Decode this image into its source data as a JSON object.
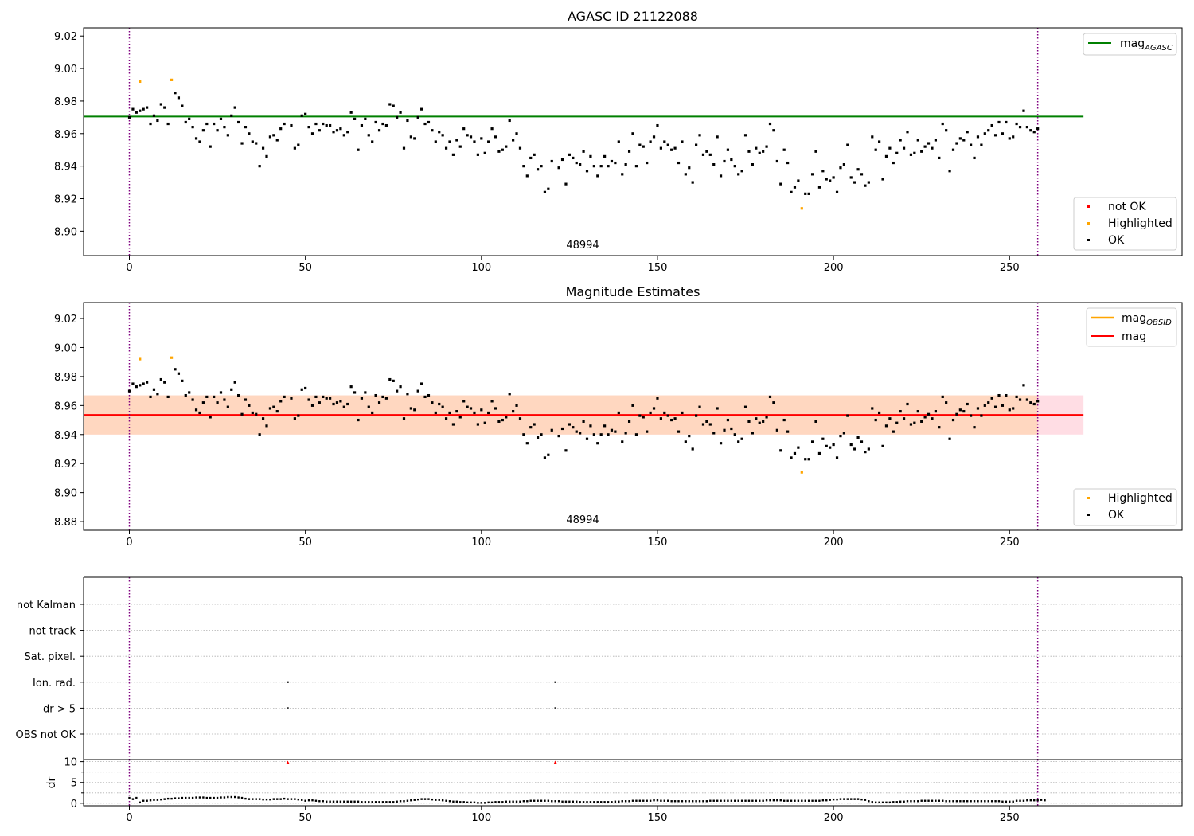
{
  "colors": {
    "ok": "#000000",
    "highlighted": "#ffa500",
    "not_ok": "#ff0000",
    "mag_agasc_line": "#008000",
    "mag_obsid_line": "#ffa500",
    "mag_line": "#ff0000",
    "band_outer": "#ffdde4",
    "band_inner": "#ffd7c0",
    "vline": "#800080",
    "grid": "#b0b0b0"
  },
  "chart_data": [
    {
      "type": "scatter",
      "title": "AGASC ID 21122088",
      "xlabel": "",
      "ylabel": "",
      "xlim": [
        -13,
        299
      ],
      "ylim": [
        8.885,
        9.025
      ],
      "xticks": [
        0,
        50,
        100,
        150,
        200,
        250
      ],
      "yticks": [
        8.9,
        8.92,
        8.94,
        8.96,
        8.98,
        9.0,
        9.02
      ],
      "ytick_labels": [
        "8.90",
        "8.92",
        "8.94",
        "8.96",
        "8.98",
        "9.00",
        "9.02"
      ],
      "annotation": {
        "text": "48994",
        "x": 129,
        "y": 8.889
      },
      "vlines": [
        0,
        258
      ],
      "hlines": [
        {
          "name": "mag",
          "sub": "AGASC",
          "y": 8.9705,
          "x": [
            -13,
            271
          ]
        }
      ],
      "legend_lines": [
        {
          "label": "mag",
          "sub": "AGASC",
          "color_key": "mag_agasc_line",
          "position": "top-right"
        }
      ],
      "legend_points": [
        {
          "label": "not OK",
          "color_key": "not_ok"
        },
        {
          "label": "Highlighted",
          "color_key": "highlighted"
        },
        {
          "label": "OK",
          "color_key": "ok"
        }
      ],
      "legend_points_position": "bottom-right"
    },
    {
      "type": "scatter",
      "title": "Magnitude Estimates",
      "xlabel": "",
      "ylabel": "",
      "xlim": [
        -13,
        299
      ],
      "ylim": [
        8.874,
        9.031
      ],
      "xticks": [
        0,
        50,
        100,
        150,
        200,
        250
      ],
      "yticks": [
        8.88,
        8.9,
        8.92,
        8.94,
        8.96,
        8.98,
        9.0,
        9.02
      ],
      "ytick_labels": [
        "8.88",
        "8.90",
        "8.92",
        "8.94",
        "8.96",
        "8.98",
        "9.00",
        "9.02"
      ],
      "annotation": {
        "text": "48994",
        "x": 129,
        "y": 8.877
      },
      "vlines": [
        0,
        258
      ],
      "bands": [
        {
          "y0": 8.94,
          "y1": 8.967,
          "x": [
            -13,
            271
          ],
          "color_key": "band_outer"
        },
        {
          "y0": 8.94,
          "y1": 8.967,
          "x": [
            -13,
            258
          ],
          "color_key": "band_inner"
        }
      ],
      "hlines": [
        {
          "name": "mag",
          "y": 8.9535,
          "x": [
            -13,
            271
          ]
        }
      ],
      "legend_lines": [
        {
          "label": "mag",
          "sub": "OBSID",
          "color_key": "mag_obsid_line"
        },
        {
          "label": "mag",
          "color_key": "mag_line"
        }
      ],
      "legend_lines_position": "top-right",
      "legend_points": [
        {
          "label": "Highlighted",
          "color_key": "highlighted"
        },
        {
          "label": "OK",
          "color_key": "ok"
        }
      ],
      "legend_points_position": "bottom-right"
    },
    {
      "type": "scatter",
      "title": "",
      "categories": [
        "not Kalman",
        "not track",
        "Sat. pixel.",
        "Ion. rad.",
        "dr > 5",
        "OBS not OK"
      ],
      "flag_points": [
        {
          "category": "Ion. rad.",
          "x": [
            45,
            121
          ]
        },
        {
          "category": "dr > 5",
          "x": [
            45,
            121
          ]
        }
      ],
      "grid": true,
      "vlines": [
        0,
        258
      ]
    },
    {
      "type": "scatter",
      "title": "",
      "ylabel": "dr",
      "xlim": [
        -13,
        299
      ],
      "ylim": [
        -0.6,
        10.5
      ],
      "xticks": [
        0,
        50,
        100,
        150,
        200,
        250
      ],
      "yticks": [
        0,
        5,
        10
      ],
      "grid": true,
      "vlines": [
        0,
        258
      ],
      "outliers": [
        {
          "x": 45,
          "y": 9.8
        },
        {
          "x": 121,
          "y": 9.8
        }
      ]
    }
  ],
  "series": {
    "ok_points": [
      [
        0,
        8.97
      ],
      [
        1,
        8.975
      ],
      [
        2,
        8.973
      ],
      [
        3,
        8.974
      ],
      [
        4,
        8.975
      ],
      [
        5,
        8.976
      ],
      [
        6,
        8.966
      ],
      [
        7,
        8.971
      ],
      [
        8,
        8.968
      ],
      [
        9,
        8.978
      ],
      [
        10,
        8.976
      ],
      [
        11,
        8.966
      ],
      [
        13,
        8.985
      ],
      [
        14,
        8.982
      ],
      [
        15,
        8.977
      ],
      [
        16,
        8.967
      ],
      [
        17,
        8.969
      ],
      [
        18,
        8.964
      ],
      [
        19,
        8.957
      ],
      [
        20,
        8.955
      ],
      [
        21,
        8.962
      ],
      [
        22,
        8.966
      ],
      [
        23,
        8.952
      ],
      [
        24,
        8.966
      ],
      [
        25,
        8.962
      ],
      [
        26,
        8.969
      ],
      [
        27,
        8.964
      ],
      [
        28,
        8.959
      ],
      [
        29,
        8.971
      ],
      [
        30,
        8.976
      ],
      [
        31,
        8.967
      ],
      [
        32,
        8.954
      ],
      [
        33,
        8.964
      ],
      [
        34,
        8.96
      ],
      [
        35,
        8.955
      ],
      [
        36,
        8.954
      ],
      [
        37,
        8.94
      ],
      [
        38,
        8.951
      ],
      [
        39,
        8.946
      ],
      [
        40,
        8.958
      ],
      [
        41,
        8.959
      ],
      [
        42,
        8.956
      ],
      [
        43,
        8.963
      ],
      [
        44,
        8.966
      ],
      [
        46,
        8.965
      ],
      [
        47,
        8.951
      ],
      [
        48,
        8.953
      ],
      [
        49,
        8.971
      ],
      [
        50,
        8.972
      ],
      [
        51,
        8.964
      ],
      [
        52,
        8.96
      ],
      [
        53,
        8.966
      ],
      [
        54,
        8.962
      ],
      [
        55,
        8.966
      ],
      [
        56,
        8.965
      ],
      [
        57,
        8.965
      ],
      [
        58,
        8.961
      ],
      [
        59,
        8.962
      ],
      [
        60,
        8.963
      ],
      [
        61,
        8.959
      ],
      [
        62,
        8.961
      ],
      [
        63,
        8.973
      ],
      [
        64,
        8.969
      ],
      [
        65,
        8.95
      ],
      [
        66,
        8.965
      ],
      [
        67,
        8.969
      ],
      [
        68,
        8.959
      ],
      [
        69,
        8.955
      ],
      [
        70,
        8.967
      ],
      [
        71,
        8.962
      ],
      [
        72,
        8.966
      ],
      [
        73,
        8.965
      ],
      [
        74,
        8.978
      ],
      [
        75,
        8.977
      ],
      [
        76,
        8.97
      ],
      [
        77,
        8.973
      ],
      [
        78,
        8.951
      ],
      [
        79,
        8.968
      ],
      [
        80,
        8.958
      ],
      [
        81,
        8.957
      ],
      [
        82,
        8.97
      ],
      [
        83,
        8.975
      ],
      [
        84,
        8.966
      ],
      [
        85,
        8.967
      ],
      [
        86,
        8.962
      ],
      [
        87,
        8.955
      ],
      [
        88,
        8.961
      ],
      [
        89,
        8.959
      ],
      [
        90,
        8.951
      ],
      [
        91,
        8.955
      ],
      [
        92,
        8.947
      ],
      [
        93,
        8.956
      ],
      [
        94,
        8.952
      ],
      [
        95,
        8.963
      ],
      [
        96,
        8.959
      ],
      [
        97,
        8.958
      ],
      [
        98,
        8.955
      ],
      [
        99,
        8.947
      ],
      [
        100,
        8.957
      ],
      [
        101,
        8.948
      ],
      [
        102,
        8.955
      ],
      [
        103,
        8.963
      ],
      [
        104,
        8.958
      ],
      [
        105,
        8.949
      ],
      [
        106,
        8.95
      ],
      [
        107,
        8.952
      ],
      [
        108,
        8.968
      ],
      [
        109,
        8.956
      ],
      [
        110,
        8.96
      ],
      [
        111,
        8.951
      ],
      [
        112,
        8.94
      ],
      [
        113,
        8.934
      ],
      [
        114,
        8.945
      ],
      [
        115,
        8.947
      ],
      [
        116,
        8.938
      ],
      [
        117,
        8.94
      ],
      [
        118,
        8.924
      ],
      [
        119,
        8.926
      ],
      [
        120,
        8.943
      ],
      [
        122,
        8.939
      ],
      [
        123,
        8.944
      ],
      [
        124,
        8.929
      ],
      [
        125,
        8.947
      ],
      [
        126,
        8.945
      ],
      [
        127,
        8.942
      ],
      [
        128,
        8.941
      ],
      [
        129,
        8.949
      ],
      [
        130,
        8.937
      ],
      [
        131,
        8.946
      ],
      [
        132,
        8.94
      ],
      [
        133,
        8.934
      ],
      [
        134,
        8.94
      ],
      [
        135,
        8.946
      ],
      [
        136,
        8.94
      ],
      [
        137,
        8.943
      ],
      [
        138,
        8.942
      ],
      [
        139,
        8.955
      ],
      [
        140,
        8.935
      ],
      [
        141,
        8.941
      ],
      [
        142,
        8.949
      ],
      [
        143,
        8.96
      ],
      [
        144,
        8.94
      ],
      [
        145,
        8.953
      ],
      [
        146,
        8.952
      ],
      [
        147,
        8.942
      ],
      [
        148,
        8.955
      ],
      [
        149,
        8.958
      ],
      [
        150,
        8.965
      ],
      [
        151,
        8.951
      ],
      [
        152,
        8.955
      ],
      [
        153,
        8.953
      ],
      [
        154,
        8.95
      ],
      [
        155,
        8.951
      ],
      [
        156,
        8.942
      ],
      [
        157,
        8.955
      ],
      [
        158,
        8.935
      ],
      [
        159,
        8.939
      ],
      [
        160,
        8.93
      ],
      [
        161,
        8.953
      ],
      [
        162,
        8.959
      ],
      [
        163,
        8.947
      ],
      [
        164,
        8.949
      ],
      [
        165,
        8.947
      ],
      [
        166,
        8.941
      ],
      [
        167,
        8.958
      ],
      [
        168,
        8.934
      ],
      [
        169,
        8.943
      ],
      [
        170,
        8.95
      ],
      [
        171,
        8.944
      ],
      [
        172,
        8.94
      ],
      [
        173,
        8.935
      ],
      [
        174,
        8.937
      ],
      [
        175,
        8.959
      ],
      [
        176,
        8.949
      ],
      [
        177,
        8.941
      ],
      [
        178,
        8.951
      ],
      [
        179,
        8.948
      ],
      [
        180,
        8.949
      ],
      [
        181,
        8.952
      ],
      [
        182,
        8.966
      ],
      [
        183,
        8.962
      ],
      [
        184,
        8.943
      ],
      [
        185,
        8.929
      ],
      [
        186,
        8.95
      ],
      [
        187,
        8.942
      ],
      [
        188,
        8.924
      ],
      [
        189,
        8.927
      ],
      [
        190,
        8.931
      ],
      [
        192,
        8.923
      ],
      [
        193,
        8.923
      ],
      [
        194,
        8.935
      ],
      [
        195,
        8.949
      ],
      [
        196,
        8.927
      ],
      [
        197,
        8.937
      ],
      [
        198,
        8.932
      ],
      [
        199,
        8.931
      ],
      [
        200,
        8.933
      ],
      [
        201,
        8.924
      ],
      [
        202,
        8.939
      ],
      [
        203,
        8.941
      ],
      [
        204,
        8.953
      ],
      [
        205,
        8.933
      ],
      [
        206,
        8.93
      ],
      [
        207,
        8.938
      ],
      [
        208,
        8.935
      ],
      [
        209,
        8.928
      ],
      [
        210,
        8.93
      ],
      [
        211,
        8.958
      ],
      [
        212,
        8.95
      ],
      [
        213,
        8.955
      ],
      [
        214,
        8.932
      ],
      [
        215,
        8.946
      ],
      [
        216,
        8.951
      ],
      [
        217,
        8.942
      ],
      [
        218,
        8.948
      ],
      [
        219,
        8.956
      ],
      [
        220,
        8.951
      ],
      [
        221,
        8.961
      ],
      [
        222,
        8.947
      ],
      [
        223,
        8.948
      ],
      [
        224,
        8.956
      ],
      [
        225,
        8.949
      ],
      [
        226,
        8.952
      ],
      [
        227,
        8.954
      ],
      [
        228,
        8.951
      ],
      [
        229,
        8.956
      ],
      [
        230,
        8.945
      ],
      [
        231,
        8.966
      ],
      [
        232,
        8.962
      ],
      [
        233,
        8.937
      ],
      [
        234,
        8.95
      ],
      [
        235,
        8.954
      ],
      [
        236,
        8.957
      ],
      [
        237,
        8.956
      ],
      [
        238,
        8.961
      ],
      [
        239,
        8.953
      ],
      [
        240,
        8.945
      ],
      [
        241,
        8.958
      ],
      [
        242,
        8.953
      ],
      [
        243,
        8.96
      ],
      [
        244,
        8.962
      ],
      [
        245,
        8.965
      ],
      [
        246,
        8.959
      ],
      [
        247,
        8.967
      ],
      [
        248,
        8.96
      ],
      [
        249,
        8.967
      ],
      [
        250,
        8.957
      ],
      [
        251,
        8.958
      ],
      [
        252,
        8.966
      ],
      [
        253,
        8.964
      ],
      [
        254,
        8.974
      ],
      [
        255,
        8.964
      ],
      [
        256,
        8.962
      ],
      [
        257,
        8.961
      ],
      [
        258,
        8.963
      ]
    ],
    "highlighted_points": [
      [
        3,
        8.992
      ],
      [
        12,
        8.993
      ],
      [
        191,
        8.914
      ]
    ],
    "dr_values": [
      1.3,
      1.0,
      1.3,
      0.2,
      0.6,
      0.6,
      0.7,
      0.8,
      0.8,
      0.9,
      1.0,
      1.1,
      1.1,
      1.2,
      1.2,
      1.3,
      1.3,
      1.3,
      1.3,
      1.4,
      1.4,
      1.4,
      1.3,
      1.3,
      1.3,
      1.3,
      1.4,
      1.4,
      1.5,
      1.5,
      1.5,
      1.4,
      1.3,
      1.1,
      1.0,
      1.0,
      1.0,
      1.0,
      0.9,
      0.9,
      0.9,
      1.0,
      1.0,
      1.0,
      1.1,
      1.0,
      1.0,
      1.0,
      0.9,
      0.8,
      0.6,
      0.7,
      0.7,
      0.6,
      0.5,
      0.5,
      0.4,
      0.4,
      0.4,
      0.4,
      0.4,
      0.4,
      0.4,
      0.4,
      0.4,
      0.4,
      0.3,
      0.3,
      0.3,
      0.3,
      0.3,
      0.3,
      0.3,
      0.3,
      0.3,
      0.3,
      0.4,
      0.5,
      0.5,
      0.6,
      0.7,
      0.8,
      0.9,
      1.0,
      1.0,
      1.0,
      0.9,
      0.8,
      0.8,
      0.7,
      0.6,
      0.5,
      0.4,
      0.4,
      0.3,
      0.3,
      0.2,
      0.2,
      0.2,
      0.1,
      0.1,
      0.1,
      0.2,
      0.2,
      0.3,
      0.3,
      0.3,
      0.4,
      0.4,
      0.4,
      0.4,
      0.4,
      0.5,
      0.5,
      0.6,
      0.6,
      0.6,
      0.6,
      0.6,
      0.6,
      0.5,
      0.5,
      0.5,
      0.4,
      0.4,
      0.4,
      0.4,
      0.4,
      0.3,
      0.3,
      0.3,
      0.3,
      0.3,
      0.3,
      0.3,
      0.3,
      0.3,
      0.3,
      0.4,
      0.4,
      0.5,
      0.5,
      0.5,
      0.6,
      0.6,
      0.6,
      0.6,
      0.6,
      0.6,
      0.7,
      0.7,
      0.6,
      0.6,
      0.6,
      0.5,
      0.5,
      0.5,
      0.5,
      0.5,
      0.5,
      0.5,
      0.5,
      0.5,
      0.5,
      0.5,
      0.6,
      0.6,
      0.6,
      0.6,
      0.6,
      0.6,
      0.6,
      0.6,
      0.6,
      0.6,
      0.6,
      0.6,
      0.6,
      0.6,
      0.6,
      0.6,
      0.7,
      0.7,
      0.7,
      0.7,
      0.7,
      0.6,
      0.6,
      0.6,
      0.6,
      0.6,
      0.6,
      0.6,
      0.6,
      0.6,
      0.6,
      0.6,
      0.7,
      0.7,
      0.8,
      0.9,
      0.9,
      1.0,
      1.0,
      1.0,
      1.0,
      1.0,
      1.0,
      0.9,
      0.8,
      0.5,
      0.3,
      0.2,
      0.2,
      0.2,
      0.2,
      0.2,
      0.3,
      0.3,
      0.4,
      0.4,
      0.5,
      0.5,
      0.5,
      0.5,
      0.6,
      0.6,
      0.6,
      0.6,
      0.6,
      0.6,
      0.6,
      0.5,
      0.5,
      0.5,
      0.5,
      0.5,
      0.5,
      0.5,
      0.5,
      0.5,
      0.5,
      0.5,
      0.5,
      0.5,
      0.5,
      0.5,
      0.5,
      0.4,
      0.4,
      0.4,
      0.4,
      0.6,
      0.6,
      0.6,
      0.7,
      0.7,
      0.7,
      0.7,
      0.8,
      0.7
    ]
  }
}
